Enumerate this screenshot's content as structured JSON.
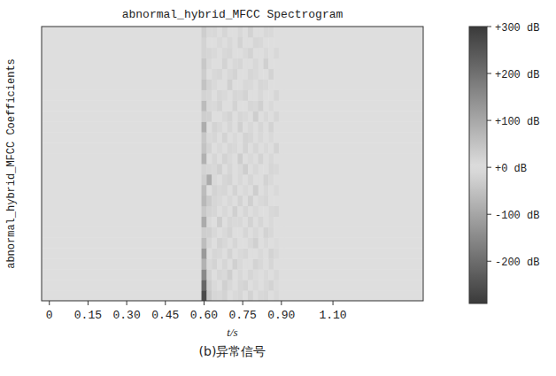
{
  "chart_data": {
    "type": "heatmap",
    "title": "abnormal_hybrid_MFCC Spectrogram",
    "x_label": "t/s",
    "y_label": "abnormal_hybrid_MFCC Coefficients",
    "caption": "(b)异常信号",
    "xlim": [
      -0.03,
      1.45
    ],
    "ylim": [
      0,
      26
    ],
    "xticks": [
      0,
      0.15,
      {
        "value": 0.3,
        "label": "0.30"
      },
      0.45,
      {
        "value": 0.6,
        "label": "0.60"
      },
      0.75,
      {
        "value": 0.9,
        "label": "0.90"
      },
      {
        "value": 1.1,
        "label": "1.10"
      }
    ],
    "tick_labels": "x",
    "x_edges": [
      -0.03,
      0.59,
      0.61,
      0.63,
      0.65,
      0.67,
      0.69,
      0.71,
      0.73,
      0.75,
      0.77,
      0.79,
      0.81,
      0.83,
      0.85,
      0.87,
      0.89,
      0.91,
      1.45
    ],
    "values": [
      [
        0,
        -260,
        40,
        15,
        -10,
        20,
        0,
        10,
        -15,
        0,
        20,
        0,
        -10,
        15,
        0,
        10,
        0,
        0
      ],
      [
        0,
        220,
        -30,
        10,
        0,
        25,
        -10,
        0,
        15,
        -20,
        0,
        10,
        0,
        -10,
        20,
        5,
        0,
        0
      ],
      [
        0,
        -150,
        20,
        0,
        -15,
        10,
        30,
        0,
        -10,
        0,
        15,
        -5,
        0,
        10,
        0,
        -10,
        0,
        0
      ],
      [
        0,
        80,
        10,
        -20,
        0,
        15,
        0,
        -25,
        10,
        0,
        0,
        20,
        -10,
        0,
        15,
        0,
        0,
        0
      ],
      [
        0,
        -120,
        0,
        15,
        -10,
        0,
        20,
        0,
        10,
        -15,
        0,
        0,
        10,
        0,
        -20,
        10,
        0,
        0
      ],
      [
        0,
        60,
        -15,
        0,
        20,
        -10,
        0,
        15,
        0,
        0,
        -10,
        25,
        0,
        10,
        0,
        -5,
        0,
        0
      ],
      [
        0,
        30,
        25,
        -10,
        0,
        10,
        -20,
        0,
        0,
        15,
        0,
        -10,
        0,
        20,
        -10,
        0,
        0,
        0
      ],
      [
        0,
        -90,
        10,
        0,
        -30,
        0,
        15,
        10,
        -10,
        0,
        20,
        0,
        -15,
        0,
        10,
        0,
        0,
        0
      ],
      [
        0,
        40,
        -20,
        15,
        0,
        -10,
        0,
        25,
        0,
        -15,
        0,
        10,
        0,
        0,
        -10,
        15,
        0,
        0
      ],
      [
        0,
        70,
        35,
        -15,
        10,
        0,
        -10,
        0,
        20,
        0,
        -25,
        0,
        10,
        15,
        0,
        0,
        0,
        0
      ],
      [
        0,
        -60,
        0,
        20,
        -10,
        15,
        0,
        -20,
        0,
        10,
        0,
        30,
        0,
        -10,
        0,
        10,
        0,
        0
      ],
      [
        0,
        30,
        -90,
        10,
        0,
        -15,
        20,
        0,
        -10,
        0,
        15,
        0,
        0,
        -20,
        10,
        0,
        0,
        0
      ],
      [
        0,
        20,
        15,
        -10,
        25,
        0,
        -15,
        0,
        10,
        30,
        0,
        -10,
        0,
        0,
        15,
        -10,
        0,
        0
      ],
      [
        0,
        -80,
        0,
        15,
        0,
        -20,
        10,
        0,
        -30,
        0,
        10,
        0,
        20,
        0,
        -10,
        0,
        0,
        0
      ],
      [
        0,
        50,
        -20,
        0,
        10,
        0,
        15,
        -10,
        0,
        20,
        0,
        -15,
        0,
        10,
        0,
        20,
        0,
        0
      ],
      [
        0,
        -40,
        10,
        -15,
        0,
        20,
        0,
        10,
        0,
        -20,
        15,
        0,
        -10,
        0,
        10,
        0,
        0,
        0
      ],
      [
        0,
        90,
        0,
        20,
        -10,
        0,
        -15,
        0,
        25,
        0,
        -10,
        0,
        15,
        0,
        -20,
        0,
        0,
        0
      ],
      [
        0,
        30,
        25,
        0,
        0,
        -10,
        20,
        0,
        -15,
        10,
        0,
        30,
        0,
        -10,
        0,
        15,
        0,
        0
      ],
      [
        0,
        -60,
        -10,
        10,
        20,
        0,
        0,
        -20,
        0,
        0,
        15,
        -10,
        25,
        0,
        10,
        0,
        0,
        0
      ],
      [
        0,
        20,
        15,
        0,
        -15,
        10,
        0,
        15,
        -10,
        20,
        0,
        0,
        -10,
        0,
        0,
        -15,
        0,
        0
      ],
      [
        0,
        50,
        -20,
        10,
        0,
        0,
        25,
        0,
        0,
        -10,
        10,
        0,
        15,
        -10,
        0,
        0,
        0,
        0
      ],
      [
        0,
        -30,
        0,
        -10,
        15,
        0,
        -10,
        20,
        0,
        0,
        -15,
        10,
        0,
        0,
        20,
        0,
        0,
        0
      ],
      [
        0,
        40,
        10,
        0,
        0,
        20,
        0,
        -10,
        15,
        0,
        0,
        -10,
        0,
        25,
        0,
        0,
        0,
        0
      ],
      [
        0,
        20,
        -15,
        10,
        0,
        -10,
        15,
        0,
        0,
        10,
        -20,
        0,
        0,
        10,
        0,
        -10,
        0,
        0
      ],
      [
        0,
        -20,
        0,
        0,
        10,
        0,
        -10,
        0,
        20,
        0,
        0,
        15,
        -10,
        0,
        0,
        0,
        0,
        0
      ],
      [
        0,
        30,
        10,
        -10,
        0,
        15,
        0,
        0,
        -10,
        0,
        20,
        0,
        0,
        -10,
        10,
        0,
        0,
        0
      ]
    ],
    "colorbar": {
      "zlim": [
        -290,
        300
      ],
      "ticks": [
        {
          "value": 300,
          "label": "+300 dB"
        },
        {
          "value": 200,
          "label": "+200 dB"
        },
        {
          "value": 100,
          "label": "+100 dB"
        },
        {
          "value": 0,
          "label": "+0 dB"
        },
        {
          "value": -100,
          "label": "-100 dB"
        },
        {
          "value": -200,
          "label": "-200 dB"
        }
      ]
    }
  }
}
